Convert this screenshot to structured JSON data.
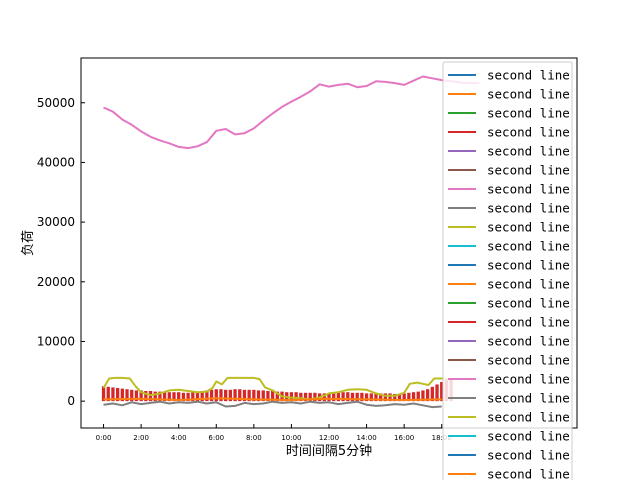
{
  "chart_data": {
    "type": "line",
    "title": "",
    "xlabel": "时间间隔5分钟",
    "ylabel": "负荷",
    "xlim": [
      -1.2,
      25.2
    ],
    "ylim": [
      -4500,
      57500
    ],
    "x_tick_labels": [
      "0:00",
      "2:00",
      "4:00",
      "6:00",
      "8:00",
      "10:00",
      "12:00",
      "14:00",
      "16:00",
      "18:00"
    ],
    "x_tick_values": [
      0,
      2,
      4,
      6,
      8,
      10,
      12,
      14,
      16,
      18
    ],
    "y_ticks": [
      0,
      10000,
      20000,
      30000,
      40000,
      50000
    ],
    "y_tick_labels": [
      "0",
      "10000",
      "20000",
      "30000",
      "40000",
      "50000"
    ],
    "legend": {
      "placement": "right",
      "entries": [
        {
          "label": "second line",
          "color": "#1f77b4"
        },
        {
          "label": "second line",
          "color": "#ff7f0e"
        },
        {
          "label": "second line",
          "color": "#2ca02c"
        },
        {
          "label": "second line",
          "color": "#d62728"
        },
        {
          "label": "second line",
          "color": "#9467bd"
        },
        {
          "label": "second line",
          "color": "#8c564b"
        },
        {
          "label": "second line",
          "color": "#e377c2"
        },
        {
          "label": "second line",
          "color": "#7f7f7f"
        },
        {
          "label": "second line",
          "color": "#bcbd22"
        },
        {
          "label": "second line",
          "color": "#17becf"
        },
        {
          "label": "second line",
          "color": "#1f77b4"
        },
        {
          "label": "second line",
          "color": "#ff7f0e"
        },
        {
          "label": "second line",
          "color": "#2ca02c"
        },
        {
          "label": "second line",
          "color": "#d62728"
        },
        {
          "label": "second line",
          "color": "#9467bd"
        },
        {
          "label": "second line",
          "color": "#8c564b"
        },
        {
          "label": "second line",
          "color": "#e377c2"
        },
        {
          "label": "second line",
          "color": "#7f7f7f"
        },
        {
          "label": "second line",
          "color": "#bcbd22"
        },
        {
          "label": "second line",
          "color": "#17becf"
        },
        {
          "label": "second line",
          "color": "#1f77b4"
        },
        {
          "label": "second line",
          "color": "#ff7f0e"
        }
      ]
    },
    "series": [
      {
        "color": "#e377c2",
        "x": [
          0,
          0.5,
          1,
          1.5,
          2,
          2.5,
          3,
          3.5,
          4,
          4.5,
          5,
          5.5,
          6,
          6.5,
          7,
          7.5,
          8,
          8.5,
          9,
          9.5,
          10,
          10.5,
          11,
          11.5,
          12,
          12.5,
          13,
          13.5,
          14,
          14.5,
          15,
          15.5,
          16,
          16.5,
          17,
          17.5,
          18,
          18.5,
          19,
          19.5,
          20
        ],
        "y": [
          49200,
          48500,
          47200,
          46300,
          45200,
          44300,
          43700,
          43200,
          42600,
          42400,
          42700,
          43400,
          45300,
          45600,
          44700,
          44900,
          45700,
          47000,
          48200,
          49300,
          50200,
          51000,
          51900,
          53100,
          52700,
          53000,
          53200,
          52600,
          52800,
          53600,
          53500,
          53300,
          53000,
          53700,
          54400,
          54100,
          53800,
          53600,
          53400,
          53300,
          53300
        ]
      },
      {
        "color": "#bcbd22",
        "x": [
          0,
          0.3,
          0.6,
          1.0,
          1.4,
          1.7,
          2.0,
          2.5,
          3.0,
          3.5,
          4.0,
          4.5,
          5.0,
          5.5,
          5.8,
          6.0,
          6.3,
          6.6,
          7.0,
          7.5,
          8.0,
          8.3,
          8.6,
          9.0,
          9.5,
          10.0,
          10.5,
          11.0,
          11.5,
          12.0,
          12.5,
          13.0,
          13.5,
          14.0,
          14.5,
          15.0,
          15.5,
          16.0,
          16.3,
          16.7,
          17.0,
          17.3,
          17.6,
          18.0,
          18.3
        ],
        "y": [
          2200,
          3800,
          3900,
          3900,
          3800,
          2500,
          1500,
          1000,
          1300,
          1800,
          1900,
          1700,
          1500,
          1600,
          2200,
          3300,
          2800,
          3900,
          3900,
          3900,
          3900,
          3700,
          2300,
          1800,
          800,
          600,
          500,
          300,
          600,
          1300,
          1500,
          1900,
          2000,
          1900,
          1300,
          900,
          900,
          1400,
          2900,
          3100,
          2900,
          2700,
          3800,
          3800,
          3700
        ]
      },
      {
        "color": "#7f7f7f",
        "x": [
          0,
          0.5,
          1,
          1.5,
          2,
          2.5,
          3,
          3.5,
          4,
          4.5,
          5,
          5.5,
          6,
          6.5,
          7,
          7.5,
          8,
          8.5,
          9,
          9.5,
          10,
          10.5,
          11,
          11.5,
          12,
          12.5,
          13,
          13.5,
          14,
          14.5,
          15,
          15.5,
          16,
          16.5,
          17,
          17.5,
          18
        ],
        "y": [
          -600,
          -400,
          -700,
          -200,
          -500,
          -300,
          -100,
          -400,
          -200,
          -300,
          -100,
          -400,
          -200,
          -900,
          -800,
          -300,
          -500,
          -400,
          -100,
          -300,
          -200,
          -400,
          -100,
          -300,
          -200,
          -500,
          -300,
          -100,
          -600,
          -800,
          -700,
          -500,
          -600,
          -400,
          -700,
          -1000,
          -900
        ]
      },
      {
        "color": "#ff7f0e",
        "x": [
          0,
          2,
          4,
          6,
          8,
          10,
          12,
          14,
          16,
          18
        ],
        "y": [
          300,
          400,
          200,
          500,
          300,
          200,
          400,
          300,
          200,
          300
        ]
      }
    ],
    "bars": {
      "color": "#d62728",
      "x": [
        0,
        0.25,
        0.5,
        0.75,
        1,
        1.25,
        1.5,
        1.75,
        2,
        2.25,
        2.5,
        2.75,
        3,
        3.25,
        3.5,
        3.75,
        4,
        4.25,
        4.5,
        4.75,
        5,
        5.25,
        5.5,
        5.75,
        6,
        6.25,
        6.5,
        6.75,
        7,
        7.25,
        7.5,
        7.75,
        8,
        8.25,
        8.5,
        8.75,
        9,
        9.25,
        9.5,
        9.75,
        10,
        10.25,
        10.5,
        10.75,
        11,
        11.25,
        11.5,
        11.75,
        12,
        12.25,
        12.5,
        12.75,
        13,
        13.25,
        13.5,
        13.75,
        14,
        14.25,
        14.5,
        14.75,
        15,
        15.25,
        15.5,
        15.75,
        16,
        16.25,
        16.5,
        16.75,
        17,
        17.25,
        17.5,
        17.75,
        18,
        18.25,
        18.5
      ],
      "y": [
        2500,
        2400,
        2300,
        2200,
        2100,
        2000,
        1900,
        1800,
        1800,
        1700,
        1700,
        1600,
        1600,
        1500,
        1500,
        1500,
        1500,
        1400,
        1400,
        1500,
        1600,
        1700,
        1800,
        1900,
        2000,
        2000,
        1900,
        1900,
        2000,
        2000,
        1900,
        1900,
        1900,
        1800,
        1800,
        1700,
        1700,
        1600,
        1600,
        1500,
        1500,
        1500,
        1400,
        1400,
        1400,
        1400,
        1300,
        1300,
        1300,
        1400,
        1400,
        1500,
        1500,
        1400,
        1400,
        1400,
        1300,
        1300,
        1300,
        1300,
        1300,
        1300,
        1200,
        1200,
        1300,
        1400,
        1500,
        1600,
        1800,
        2000,
        2400,
        2800,
        3200,
        3600,
        3800
      ]
    }
  }
}
